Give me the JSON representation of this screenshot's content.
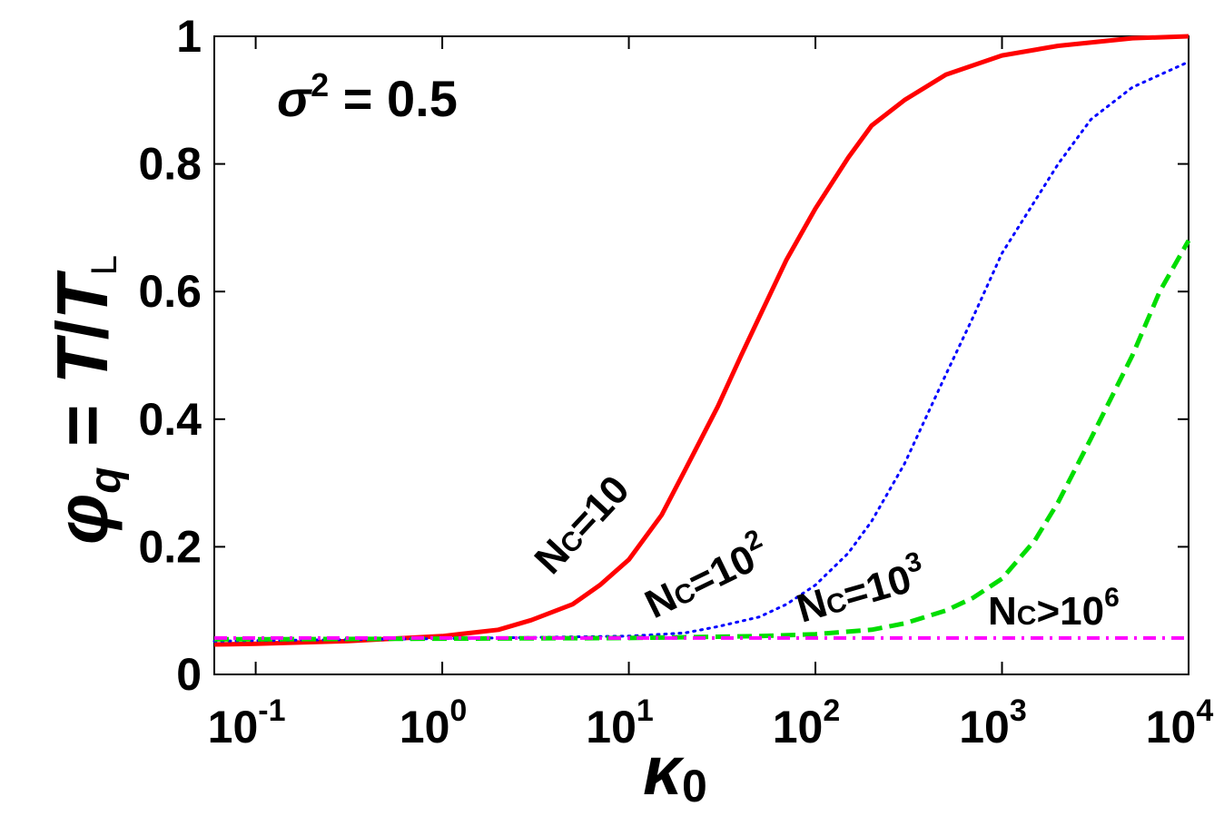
{
  "chart_data": {
    "type": "line",
    "xscale": "log",
    "xlim": [
      0.06,
      10000
    ],
    "ylim": [
      0,
      1
    ],
    "grid": false,
    "legend": "inline curve labels",
    "xlabel": {
      "base": "κ",
      "sub": "0"
    },
    "ylabel": {
      "phi": "φ",
      "phi_sub": "q",
      "eq": " = ",
      "T": "T",
      "slash": "/",
      "TL": "T",
      "TL_sub": "L"
    },
    "annotation": {
      "text": "σ",
      "sup": "2",
      "rest": " = 0.5"
    },
    "x_ticks": [
      {
        "value": 0.1,
        "base": "10",
        "exp": "-1"
      },
      {
        "value": 1,
        "base": "10",
        "exp": "0"
      },
      {
        "value": 10,
        "base": "10",
        "exp": "1"
      },
      {
        "value": 100,
        "base": "10",
        "exp": "2"
      },
      {
        "value": 1000,
        "base": "10",
        "exp": "3"
      },
      {
        "value": 10000,
        "base": "10",
        "exp": "4"
      }
    ],
    "y_ticks": [
      {
        "value": 0,
        "label": "0"
      },
      {
        "value": 0.2,
        "label": "0.2"
      },
      {
        "value": 0.4,
        "label": "0.4"
      },
      {
        "value": 0.6,
        "label": "0.6"
      },
      {
        "value": 0.8,
        "label": "0.8"
      },
      {
        "value": 1,
        "label": "1"
      }
    ],
    "series": [
      {
        "label": {
          "pre": "N",
          "sub": "C",
          "op": "=10",
          "sup": ""
        },
        "color": "#ff0000",
        "style": "solid",
        "x": [
          0.06,
          0.1,
          0.3,
          1,
          2,
          3,
          5,
          7,
          10,
          15,
          20,
          30,
          40,
          50,
          70,
          100,
          150,
          200,
          300,
          500,
          1000,
          2000,
          5000,
          10000
        ],
        "y": [
          0.047,
          0.048,
          0.052,
          0.06,
          0.07,
          0.085,
          0.11,
          0.14,
          0.18,
          0.25,
          0.32,
          0.42,
          0.5,
          0.56,
          0.65,
          0.73,
          0.81,
          0.86,
          0.9,
          0.94,
          0.97,
          0.985,
          0.997,
          1.0
        ]
      },
      {
        "label": {
          "pre": "N",
          "sub": "C",
          "op": "=10",
          "sup": "2"
        },
        "color": "#0000ff",
        "style": "dotted",
        "x": [
          0.06,
          0.1,
          1,
          10,
          20,
          30,
          50,
          70,
          100,
          150,
          200,
          300,
          500,
          700,
          1000,
          2000,
          3000,
          5000,
          10000
        ],
        "y": [
          0.052,
          0.053,
          0.056,
          0.06,
          0.065,
          0.075,
          0.09,
          0.11,
          0.14,
          0.19,
          0.24,
          0.33,
          0.47,
          0.56,
          0.66,
          0.8,
          0.87,
          0.92,
          0.96
        ]
      },
      {
        "label": {
          "pre": "N",
          "sub": "C",
          "op": "=10",
          "sup": "3"
        },
        "color": "#00dd00",
        "style": "dashed",
        "x": [
          0.06,
          0.1,
          1,
          10,
          50,
          100,
          200,
          300,
          500,
          700,
          1000,
          1500,
          2000,
          3000,
          5000,
          7000,
          10000
        ],
        "y": [
          0.055,
          0.055,
          0.056,
          0.057,
          0.06,
          0.063,
          0.07,
          0.08,
          0.1,
          0.12,
          0.15,
          0.21,
          0.27,
          0.37,
          0.5,
          0.6,
          0.68
        ]
      },
      {
        "label": {
          "pre": "N",
          "sub": "C",
          "op": ">10",
          "sup": "6"
        },
        "color": "#ff00ff",
        "style": "dashdot",
        "x": [
          0.06,
          10000
        ],
        "y": [
          0.057,
          0.057
        ]
      }
    ]
  }
}
